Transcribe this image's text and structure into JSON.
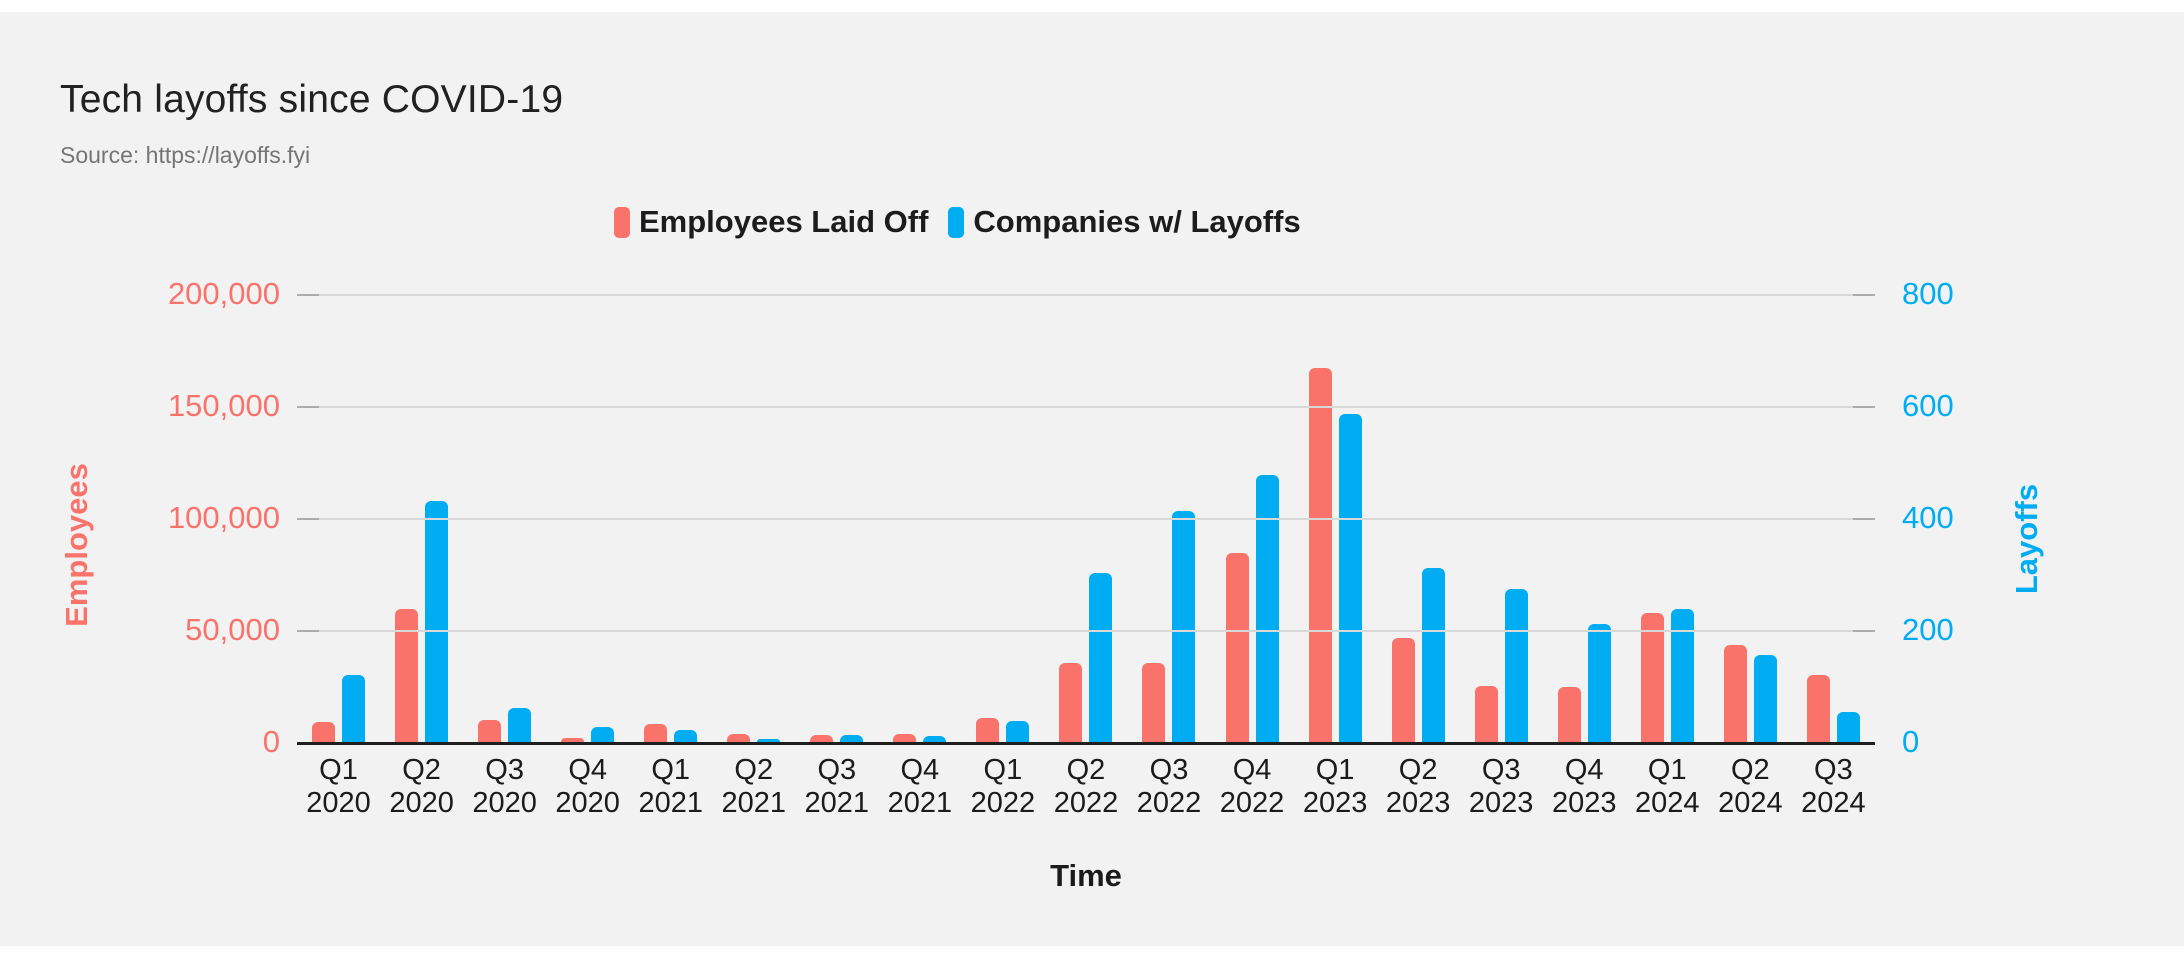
{
  "header": {
    "title": "Tech layoffs since COVID-19",
    "source": "Source: https://layoffs.fyi"
  },
  "legend": [
    {
      "label": "Employees Laid Off",
      "color": "#F9736B"
    },
    {
      "label": "Companies w/ Layoffs",
      "color": "#00ACF2"
    }
  ],
  "colors": {
    "background": "#F2F2F2",
    "frame": "#FFFFFF",
    "employees_series": "#F9736B",
    "companies_series": "#00ACF2",
    "gridline": "#D8D8D8",
    "axis_line": "#1F1F1F"
  },
  "chart_data": {
    "type": "bar",
    "title": "Tech layoffs since COVID-19",
    "subtitle": "Source: https://layoffs.fyi",
    "xlabel": "Time",
    "grid": true,
    "legend_position": "top",
    "categories": [
      "Q1 2020",
      "Q2 2020",
      "Q3 2020",
      "Q4 2020",
      "Q1 2021",
      "Q2 2021",
      "Q3 2021",
      "Q4 2021",
      "Q1 2022",
      "Q2 2022",
      "Q3 2022",
      "Q4 2022",
      "Q1 2023",
      "Q2 2023",
      "Q3 2023",
      "Q4 2023",
      "Q1 2024",
      "Q2 2024",
      "Q3 2024"
    ],
    "y_left": {
      "label": "Employees",
      "color": "#F9736B",
      "max": 200000,
      "ticks": [
        "0",
        "50,000",
        "100,000",
        "150,000",
        "200,000"
      ]
    },
    "y_right": {
      "label": "Layoffs",
      "color": "#00ACF2",
      "max": 800,
      "ticks": [
        "0",
        "200",
        "400",
        "600",
        "800"
      ]
    },
    "series": [
      {
        "name": "Employees Laid Off",
        "axis": "left",
        "color": "#F9736B",
        "values": [
          9000,
          59500,
          10000,
          2000,
          8200,
          3600,
          3100,
          3600,
          10700,
          35300,
          35300,
          84300,
          167000,
          46400,
          25000,
          24500,
          57500,
          43300,
          29900
        ]
      },
      {
        "name": "Companies w/ Layoffs",
        "axis": "right",
        "color": "#00ACF2",
        "values": [
          120,
          430,
          61,
          27,
          21,
          6,
          12,
          11,
          37,
          302,
          413,
          477,
          585,
          310,
          273,
          211,
          237,
          155,
          53
        ]
      }
    ]
  }
}
